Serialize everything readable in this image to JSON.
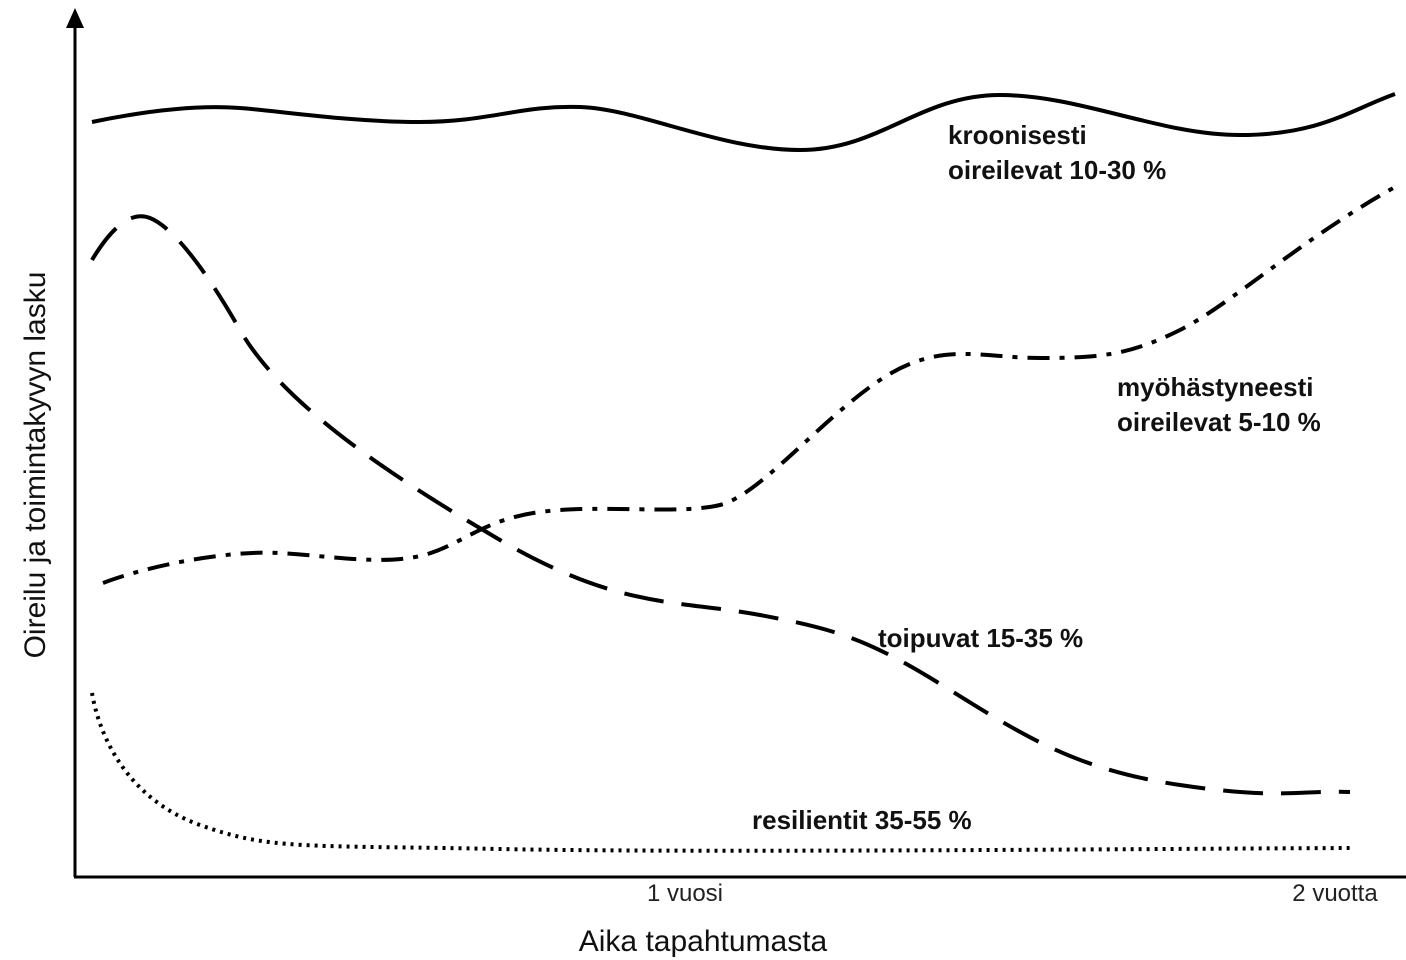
{
  "y_axis": {
    "label": "Oireilu ja toimintakyvyn lasku"
  },
  "x_axis": {
    "label": "Aika tapahtumasta",
    "ticks": [
      "1 vuosi",
      "2 vuotta"
    ]
  },
  "curves": [
    {
      "label_lines": [
        "kroonisesti",
        "oireilevat 10-30 %"
      ]
    },
    {
      "label_lines": [
        "myöhästyneesti",
        "oireilevat 5-10 %"
      ]
    },
    {
      "label_lines": [
        "toipuvat 15-35 %"
      ]
    },
    {
      "label_lines": [
        "resilientit 35-55 %"
      ]
    }
  ]
}
